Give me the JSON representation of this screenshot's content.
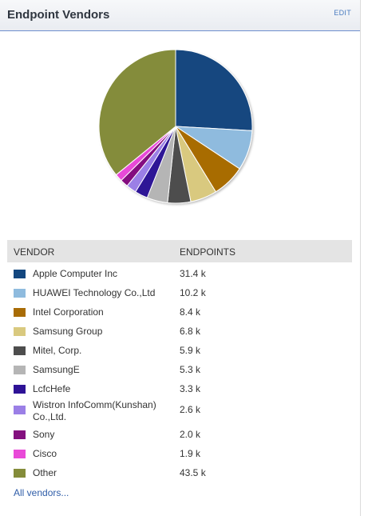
{
  "header": {
    "title": "Endpoint Vendors",
    "edit_label": "EDIT"
  },
  "table": {
    "col_vendor": "VENDOR",
    "col_endpoints": "ENDPOINTS",
    "rows": [
      {
        "vendor": "Apple Computer Inc",
        "count": "31.4 k",
        "color": "#13477f"
      },
      {
        "vendor": "HUAWEI Technology Co.,Ltd",
        "count": "10.2 k",
        "color": "#8fbbde"
      },
      {
        "vendor": "Intel Corporation",
        "count": "8.4 k",
        "color": "#a86c06"
      },
      {
        "vendor": "Samsung Group",
        "count": "6.8 k",
        "color": "#d9c97f"
      },
      {
        "vendor": "Mitel, Corp.",
        "count": "5.9 k",
        "color": "#4d4d4d"
      },
      {
        "vendor": "SamsungE",
        "count": "5.3 k",
        "color": "#b5b5b5"
      },
      {
        "vendor": "LcfcHefe",
        "count": "3.3 k",
        "color": "#2e1296"
      },
      {
        "vendor": "Wistron InfoComm(Kunshan) Co.,Ltd.",
        "count": "2.6 k",
        "color": "#9b7fe6"
      },
      {
        "vendor": "Sony",
        "count": "2.0 k",
        "color": "#84107f"
      },
      {
        "vendor": "Cisco",
        "count": "1.9 k",
        "color": "#e94ad8"
      },
      {
        "vendor": "Other",
        "count": "43.5 k",
        "color": "#848c3a"
      }
    ]
  },
  "all_vendors_link": "All vendors...",
  "chart_data": {
    "type": "pie",
    "categories": [
      "Apple Computer Inc",
      "HUAWEI Technology Co.,Ltd",
      "Intel Corporation",
      "Samsung Group",
      "Mitel, Corp.",
      "SamsungE",
      "LcfcHefe",
      "Wistron InfoComm(Kunshan) Co.,Ltd.",
      "Sony",
      "Cisco",
      "Other"
    ],
    "values": [
      31.4,
      10.2,
      8.4,
      6.8,
      5.9,
      5.3,
      3.3,
      2.6,
      2.0,
      1.9,
      43.5
    ],
    "colors": [
      "#13477f",
      "#8fbbde",
      "#a86c06",
      "#d9c97f",
      "#4d4d4d",
      "#b5b5b5",
      "#2e1296",
      "#9b7fe6",
      "#84107f",
      "#e94ad8",
      "#848c3a"
    ],
    "start": "12 o'clock, clockwise"
  }
}
